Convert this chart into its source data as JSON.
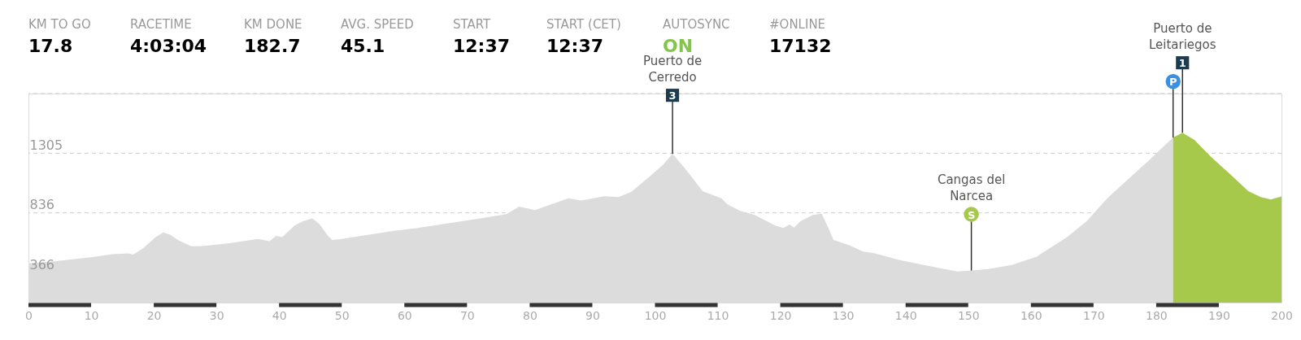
{
  "chart_data": {
    "type": "area",
    "xlim": [
      0,
      200
    ],
    "xticks": [
      0,
      10,
      20,
      30,
      40,
      50,
      60,
      70,
      80,
      90,
      100,
      110,
      120,
      130,
      140,
      150,
      160,
      170,
      180,
      190,
      200
    ],
    "ylim": [
      131,
      1774
    ],
    "yticks": [
      366,
      836,
      1305,
      {
        "value": 1774,
        "label": null
      }
    ],
    "grid": "y",
    "series": [
      {
        "color": "#dcdcdc",
        "x": [
          0,
          4.1,
          10,
          13.4,
          16,
          16.7,
          18.3,
          20.3,
          21.5,
          22.6,
          24,
          26,
          27.3,
          31.9,
          36.6,
          38.5,
          39.5,
          40.5,
          42.5,
          43.8,
          45.3,
          46.5,
          47.8,
          48.5,
          49.8,
          53.1,
          58.4,
          61.7,
          68.3,
          71.7,
          76.3,
          78.3,
          80.9,
          86.2,
          88.2,
          91.9,
          94.2,
          96.2,
          99.3,
          101.3,
          102.8,
          104.6,
          105.9,
          107.6,
          110.6,
          111.6,
          113.6,
          115.9,
          119.2,
          120.5,
          121.5,
          122.2,
          123.2,
          125.2,
          126.6,
          127.5,
          128.5,
          131.1,
          133.1,
          135.1,
          139.1,
          142.4,
          145.7,
          148.3,
          150.5,
          153,
          157,
          160.9,
          161.9,
          165.6,
          168.9,
          172.2,
          175.5,
          178.8,
          182.7
        ],
        "values": [
          440,
          455,
          488,
          511,
          517,
          508,
          557,
          646,
          682,
          665,
          619,
          573,
          573,
          596,
          632,
          613,
          655,
          646,
          737,
          770,
          793,
          744,
          655,
          623,
          629,
          655,
          695,
          715,
          764,
          790,
          826,
          885,
          859,
          951,
          934,
          967,
          961,
          1000,
          1128,
          1214,
          1300,
          1197,
          1115,
          1007,
          951,
          902,
          852,
          820,
          737,
          718,
          744,
          721,
          770,
          820,
          829,
          737,
          623,
          580,
          534,
          517,
          465,
          432,
          399,
          376,
          383,
          393,
          426,
          491,
          524,
          639,
          770,
          951,
          1099,
          1246,
          1428
        ]
      },
      {
        "color": "#a6c94b",
        "x": [
          182.7,
          184.2,
          186.1,
          188.7,
          192,
          194.7,
          196.7,
          198.3,
          200
        ],
        "values": [
          1428,
          1466,
          1410,
          1279,
          1131,
          1007,
          961,
          941,
          965
        ]
      }
    ],
    "annotations": [
      "KM TO GO",
      "17.8",
      "RACETIME",
      "4:03:04",
      "KM DONE",
      "182.7",
      "AVG. SPEED",
      "45.1",
      "START",
      "12:37",
      "START (CET)",
      "12:37",
      "AUTOSYNC",
      "ON",
      "#ONLINE",
      "17132",
      {
        "text": "Puerto de Cerredo",
        "x": 102.8,
        "y": 1300
      },
      {
        "text": "3",
        "x": 102.8,
        "y": 1300
      },
      {
        "text": "Cangas del Narcea",
        "x": 150.5,
        "y": 383
      },
      {
        "text": "S",
        "x": 150.5,
        "y": 383
      },
      {
        "text": "Puerto de Leitariegos",
        "x": 184.2,
        "y": 1466
      },
      {
        "text": "1",
        "x": 184.2,
        "y": 1466
      },
      {
        "text": "P",
        "x": 182.7,
        "y": 1428
      }
    ]
  }
}
